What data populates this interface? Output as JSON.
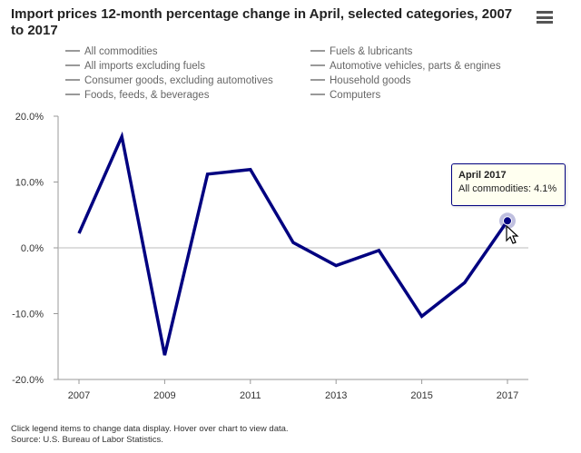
{
  "title": "Import prices 12-month percentage change in April, selected categories, 2007 to 2017",
  "menu": {
    "icon": "hamburger-menu-icon"
  },
  "legend": [
    {
      "label": "All commodities",
      "active": true
    },
    {
      "label": "All imports excluding fuels",
      "active": false
    },
    {
      "label": "Consumer goods, excluding automotives",
      "active": false
    },
    {
      "label": "Foods, feeds, & beverages",
      "active": false
    },
    {
      "label": "Fuels & lubricants",
      "active": false
    },
    {
      "label": "Automotive vehicles, parts & engines",
      "active": false
    },
    {
      "label": "Household goods",
      "active": false
    },
    {
      "label": "Computers",
      "active": false
    }
  ],
  "chart_data": {
    "type": "line",
    "title": "Import prices 12-month percentage change in April, selected categories, 2007 to 2017",
    "xlabel": "",
    "ylabel": "",
    "x": [
      2007,
      2008,
      2009,
      2010,
      2011,
      2012,
      2013,
      2014,
      2015,
      2016,
      2017
    ],
    "series": [
      {
        "name": "All commodities",
        "color": "#000080",
        "values": [
          2.2,
          16.9,
          -16.3,
          11.2,
          11.9,
          0.8,
          -2.7,
          -0.4,
          -10.4,
          -5.3,
          4.1
        ]
      }
    ],
    "xticks": [
      "2007",
      "2009",
      "2011",
      "2013",
      "2015",
      "2017"
    ],
    "yticks": [
      "20.0%",
      "10.0%",
      "0.0%",
      "-10.0%",
      "-20.0%"
    ],
    "ylim": [
      -20,
      20
    ],
    "xlim": [
      2007,
      2017
    ],
    "grid": "horizontal zero line",
    "legend_position": "top"
  },
  "tooltip": {
    "title": "April 2017",
    "text": "All commodities: 4.1%"
  },
  "footnote": {
    "line1": "Click legend items to change data display. Hover over chart to view data.",
    "line2": "Source: U.S. Bureau of Labor Statistics."
  },
  "colors": {
    "series": "#000080",
    "axis": "#999999",
    "tooltip_bg": "#fffff0"
  }
}
